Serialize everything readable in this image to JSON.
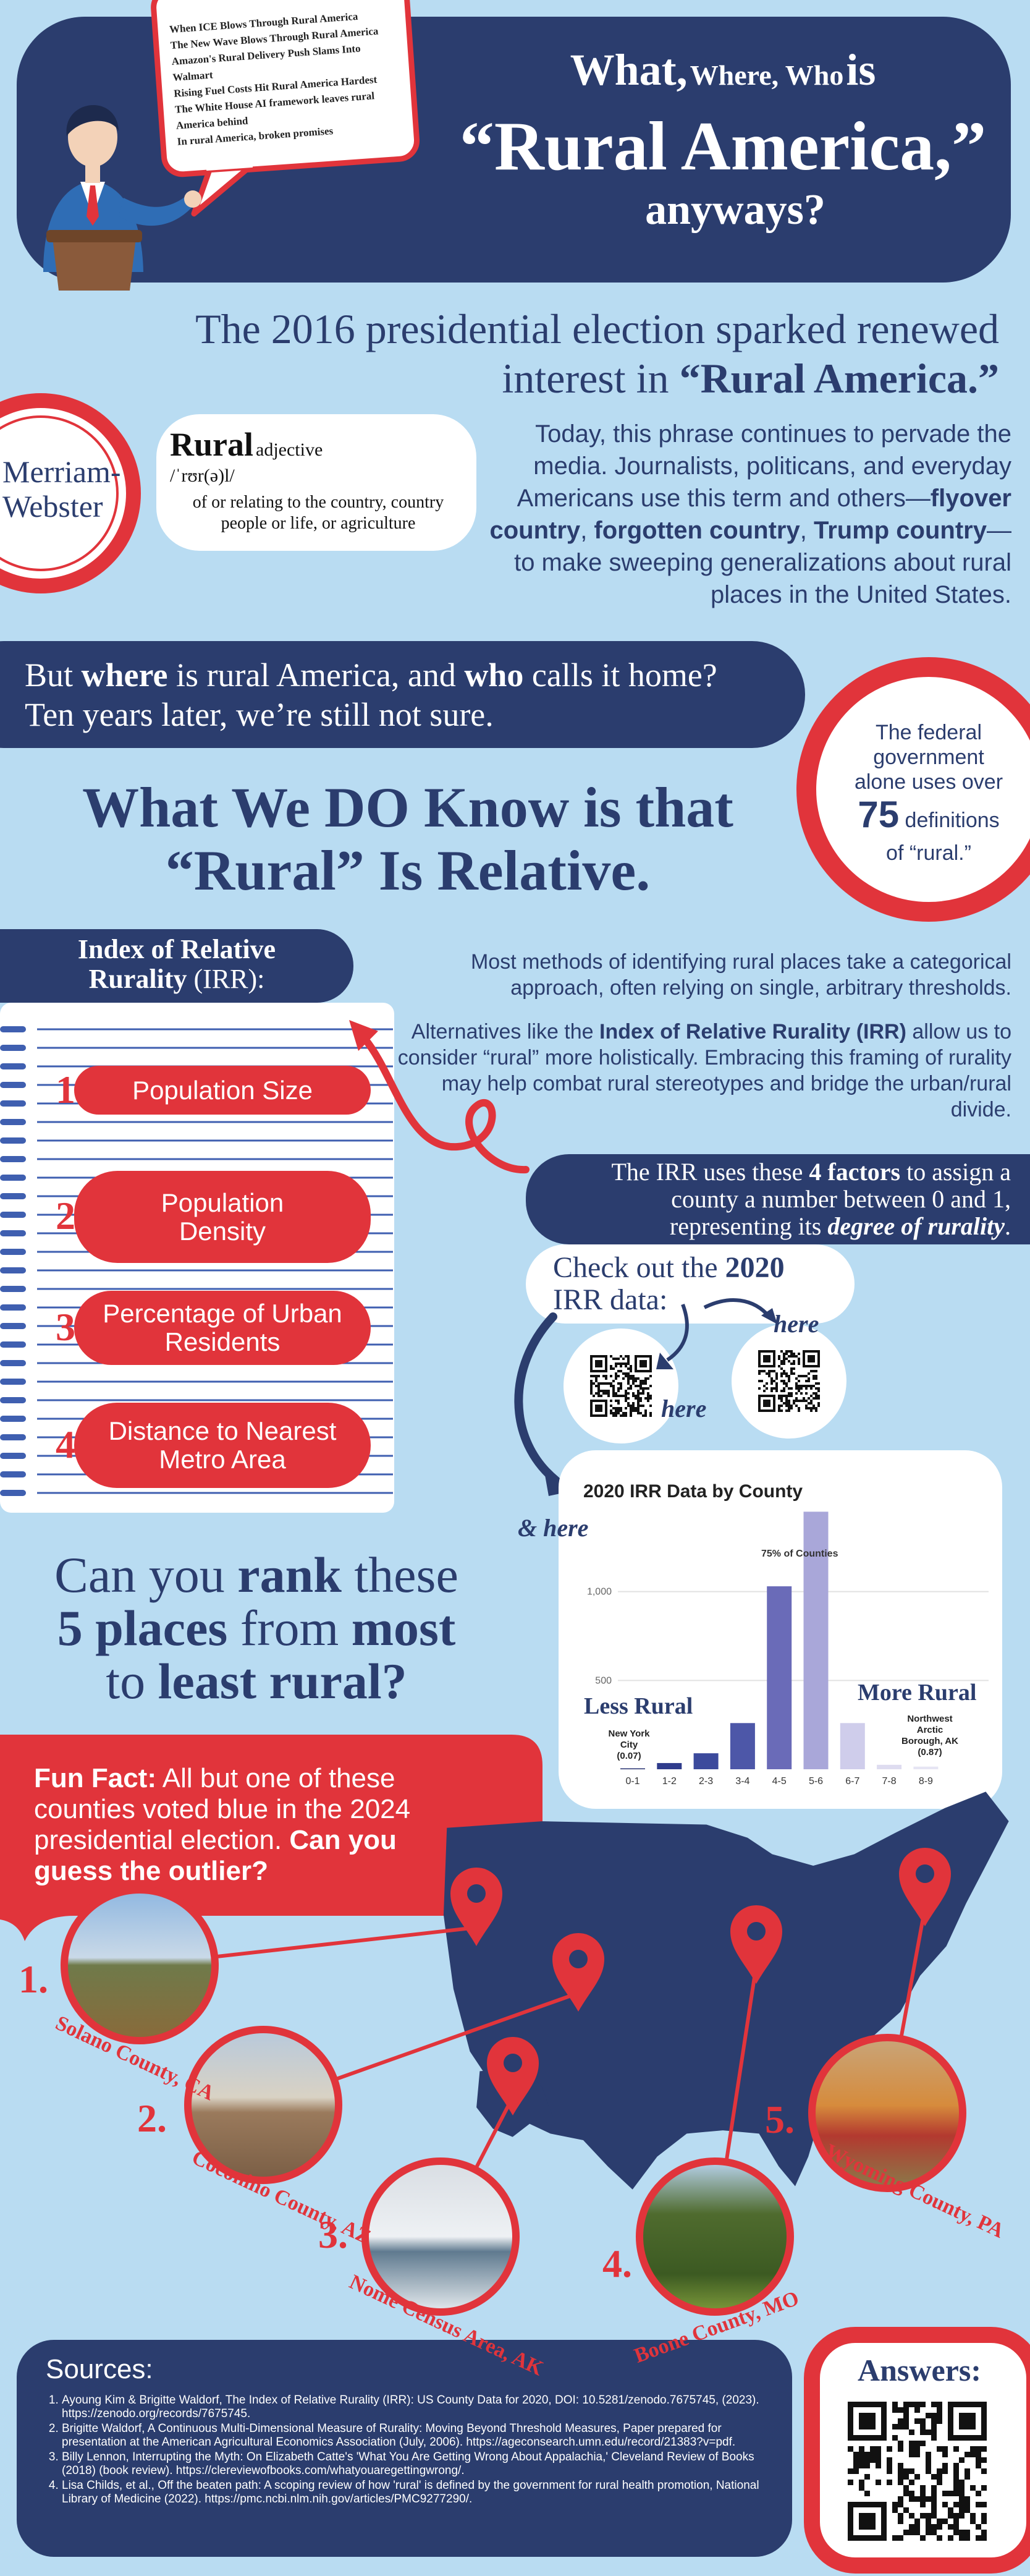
{
  "header": {
    "title_small_1": "What,",
    "title_small_2": "Where, Who",
    "title_is": "is",
    "title_main": "“Rural America,”",
    "title_bottom": "anyways?",
    "headlines": [
      "When ICE Blows Through Rural America",
      "The New Wave Blows Through Rural America",
      "Amazon's Rural Delivery Push Slams Into Walmart",
      "Rising Fuel Costs Hit Rural America Hardest",
      "The White House AI framework leaves rural America behind",
      "In rural America, broken promises"
    ]
  },
  "intro": {
    "heading": [
      "The 2016 presidential election sparked renewed interest in ",
      "“Rural America.”"
    ],
    "dictionary": {
      "publisher": [
        "Merriam-",
        "Webster"
      ],
      "word": "Rural",
      "part_of_speech": "adjective",
      "pronunciation": "/ˈrʊr(ə)l/",
      "definition": "of or relating to the country, country people or life, or agriculture"
    },
    "paragraph": [
      "Today, this phrase continues to pervade the media. Journalists, politicans, and everyday Americans use this term and others—",
      "flyover country",
      ", ",
      "forgotten country",
      ", ",
      "Trump country",
      "—to make sweeping generalizations about rural places in the United States."
    ]
  },
  "question": {
    "line1": [
      "But ",
      "where",
      " is rural America, and ",
      "who",
      " calls it home?"
    ],
    "line2": "Ten years later, we’re still not sure."
  },
  "definitions_callout": {
    "text_before": "The federal government alone uses over",
    "count": 75,
    "text_after": "definitions",
    "text_end": "of “rural.”"
  },
  "known": {
    "heading": [
      "What We DO Know is that",
      "“Rural” Is Relative."
    ]
  },
  "irr": {
    "label": [
      "Index of Relative Rurality",
      " (IRR):"
    ],
    "factors": [
      {
        "number": "1.",
        "name": "Population Size"
      },
      {
        "number": "2.",
        "name": "Population Density"
      },
      {
        "number": "3.",
        "name": "Percentage of Urban Residents"
      },
      {
        "number": "4.",
        "name": "Distance to Nearest Metro Area"
      }
    ]
  },
  "methods": {
    "paragraph1": "Most methods of identifying rural places take a categorical approach, often relying on single, arbitrary thresholds.",
    "paragraph2": [
      "Alternatives like the ",
      "Index of Relative Rurality (IRR)",
      " allow us to consider “rural” more holistically. Embracing this framing of rurality may help combat rural stereotypes and bridge the urban/rural divide."
    ]
  },
  "irr_definition": [
    "The IRR uses these ",
    "4 factors",
    " to assign a county a number between 0 and 1, representing its ",
    "degree of rurality",
    "."
  ],
  "data_links": {
    "prompt": [
      "Check out the ",
      "2020",
      " IRR data:"
    ],
    "here_1": "here",
    "here_2": "here",
    "here_3": "& here"
  },
  "irr_chart": {
    "type": "bar",
    "title": "2020 IRR Data by County",
    "categories": [
      "0-1",
      "1-2",
      "2-3",
      "3-4",
      "4-5",
      "5-6",
      "6-7",
      "7-8",
      "8-9"
    ],
    "values": [
      5,
      35,
      90,
      260,
      1030,
      1450,
      260,
      25,
      15
    ],
    "colors": [
      "#1f2a6b",
      "#2f3c8c",
      "#3c4a9c",
      "#4d57a8",
      "#6a6bb8",
      "#a9a7d9",
      "#cfcdeb",
      "#dedcf0",
      "#e6e5f3"
    ],
    "ylim": [
      0,
      1500
    ],
    "yticks": [
      500,
      {
        "value": 1000,
        "label": "1,000"
      }
    ],
    "grid": true,
    "annotation": "75% of Counties",
    "low_label": "Less Rural",
    "low_example": [
      "New York",
      "City",
      "(0.07)"
    ],
    "high_label": "More Rural",
    "high_example": [
      "Northwest",
      "Arctic",
      "Borough, AK",
      "(0.87)"
    ]
  },
  "rank": {
    "line1": [
      "Can you ",
      "rank",
      " these"
    ],
    "line2": [
      "5 places",
      " from ",
      "most"
    ],
    "line3": [
      "to ",
      "least rural?"
    ]
  },
  "fun_fact": [
    "Fun Fact:",
    " All but one of these counties voted blue in the 2024 presidential election. ",
    "Can you guess the outlier?"
  ],
  "places": [
    {
      "number": "1.",
      "name": "Solano County, CA"
    },
    {
      "number": "2.",
      "name": "Coconino County, AZ"
    },
    {
      "number": "3.",
      "name": "Nome Census Area, AK"
    },
    {
      "number": "4.",
      "name": "Boone County, MO"
    },
    {
      "number": "5.",
      "name": "Wyoming County, PA"
    }
  ],
  "sources": {
    "heading": "Sources:",
    "items": [
      "Ayoung Kim & Brigitte Waldorf, The Index of Relative Rurality (IRR): US County Data for 2020, DOI: 10.5281/zenodo.7675745, (2023). https://zenodo.org/records/7675745.",
      "Brigitte Waldorf, A Continuous Multi-Dimensional Measure of Rurality: Moving Beyond Threshold Measures, Paper prepared for presentation at the American Agricultural Economics Association (July, 2006). https://ageconsearch.umn.edu/record/21383?v=pdf.",
      "Billy Lennon, Interrupting the Myth: On Elizabeth Catte's 'What You Are Getting Wrong About Appalachia,' Cleveland Review of Books (2018) (book review). https://clereviewofbooks.com/whatyouaregettingwrong/.",
      "Lisa Childs, et al., Off the beaten path: A scoping review of how 'rural' is defined by the government for rural health promotion, National Library of Medicine (2022). https://pmc.ncbi.nlm.nih.gov/articles/PMC9277290/."
    ]
  },
  "answers": {
    "heading": "Answers:"
  }
}
